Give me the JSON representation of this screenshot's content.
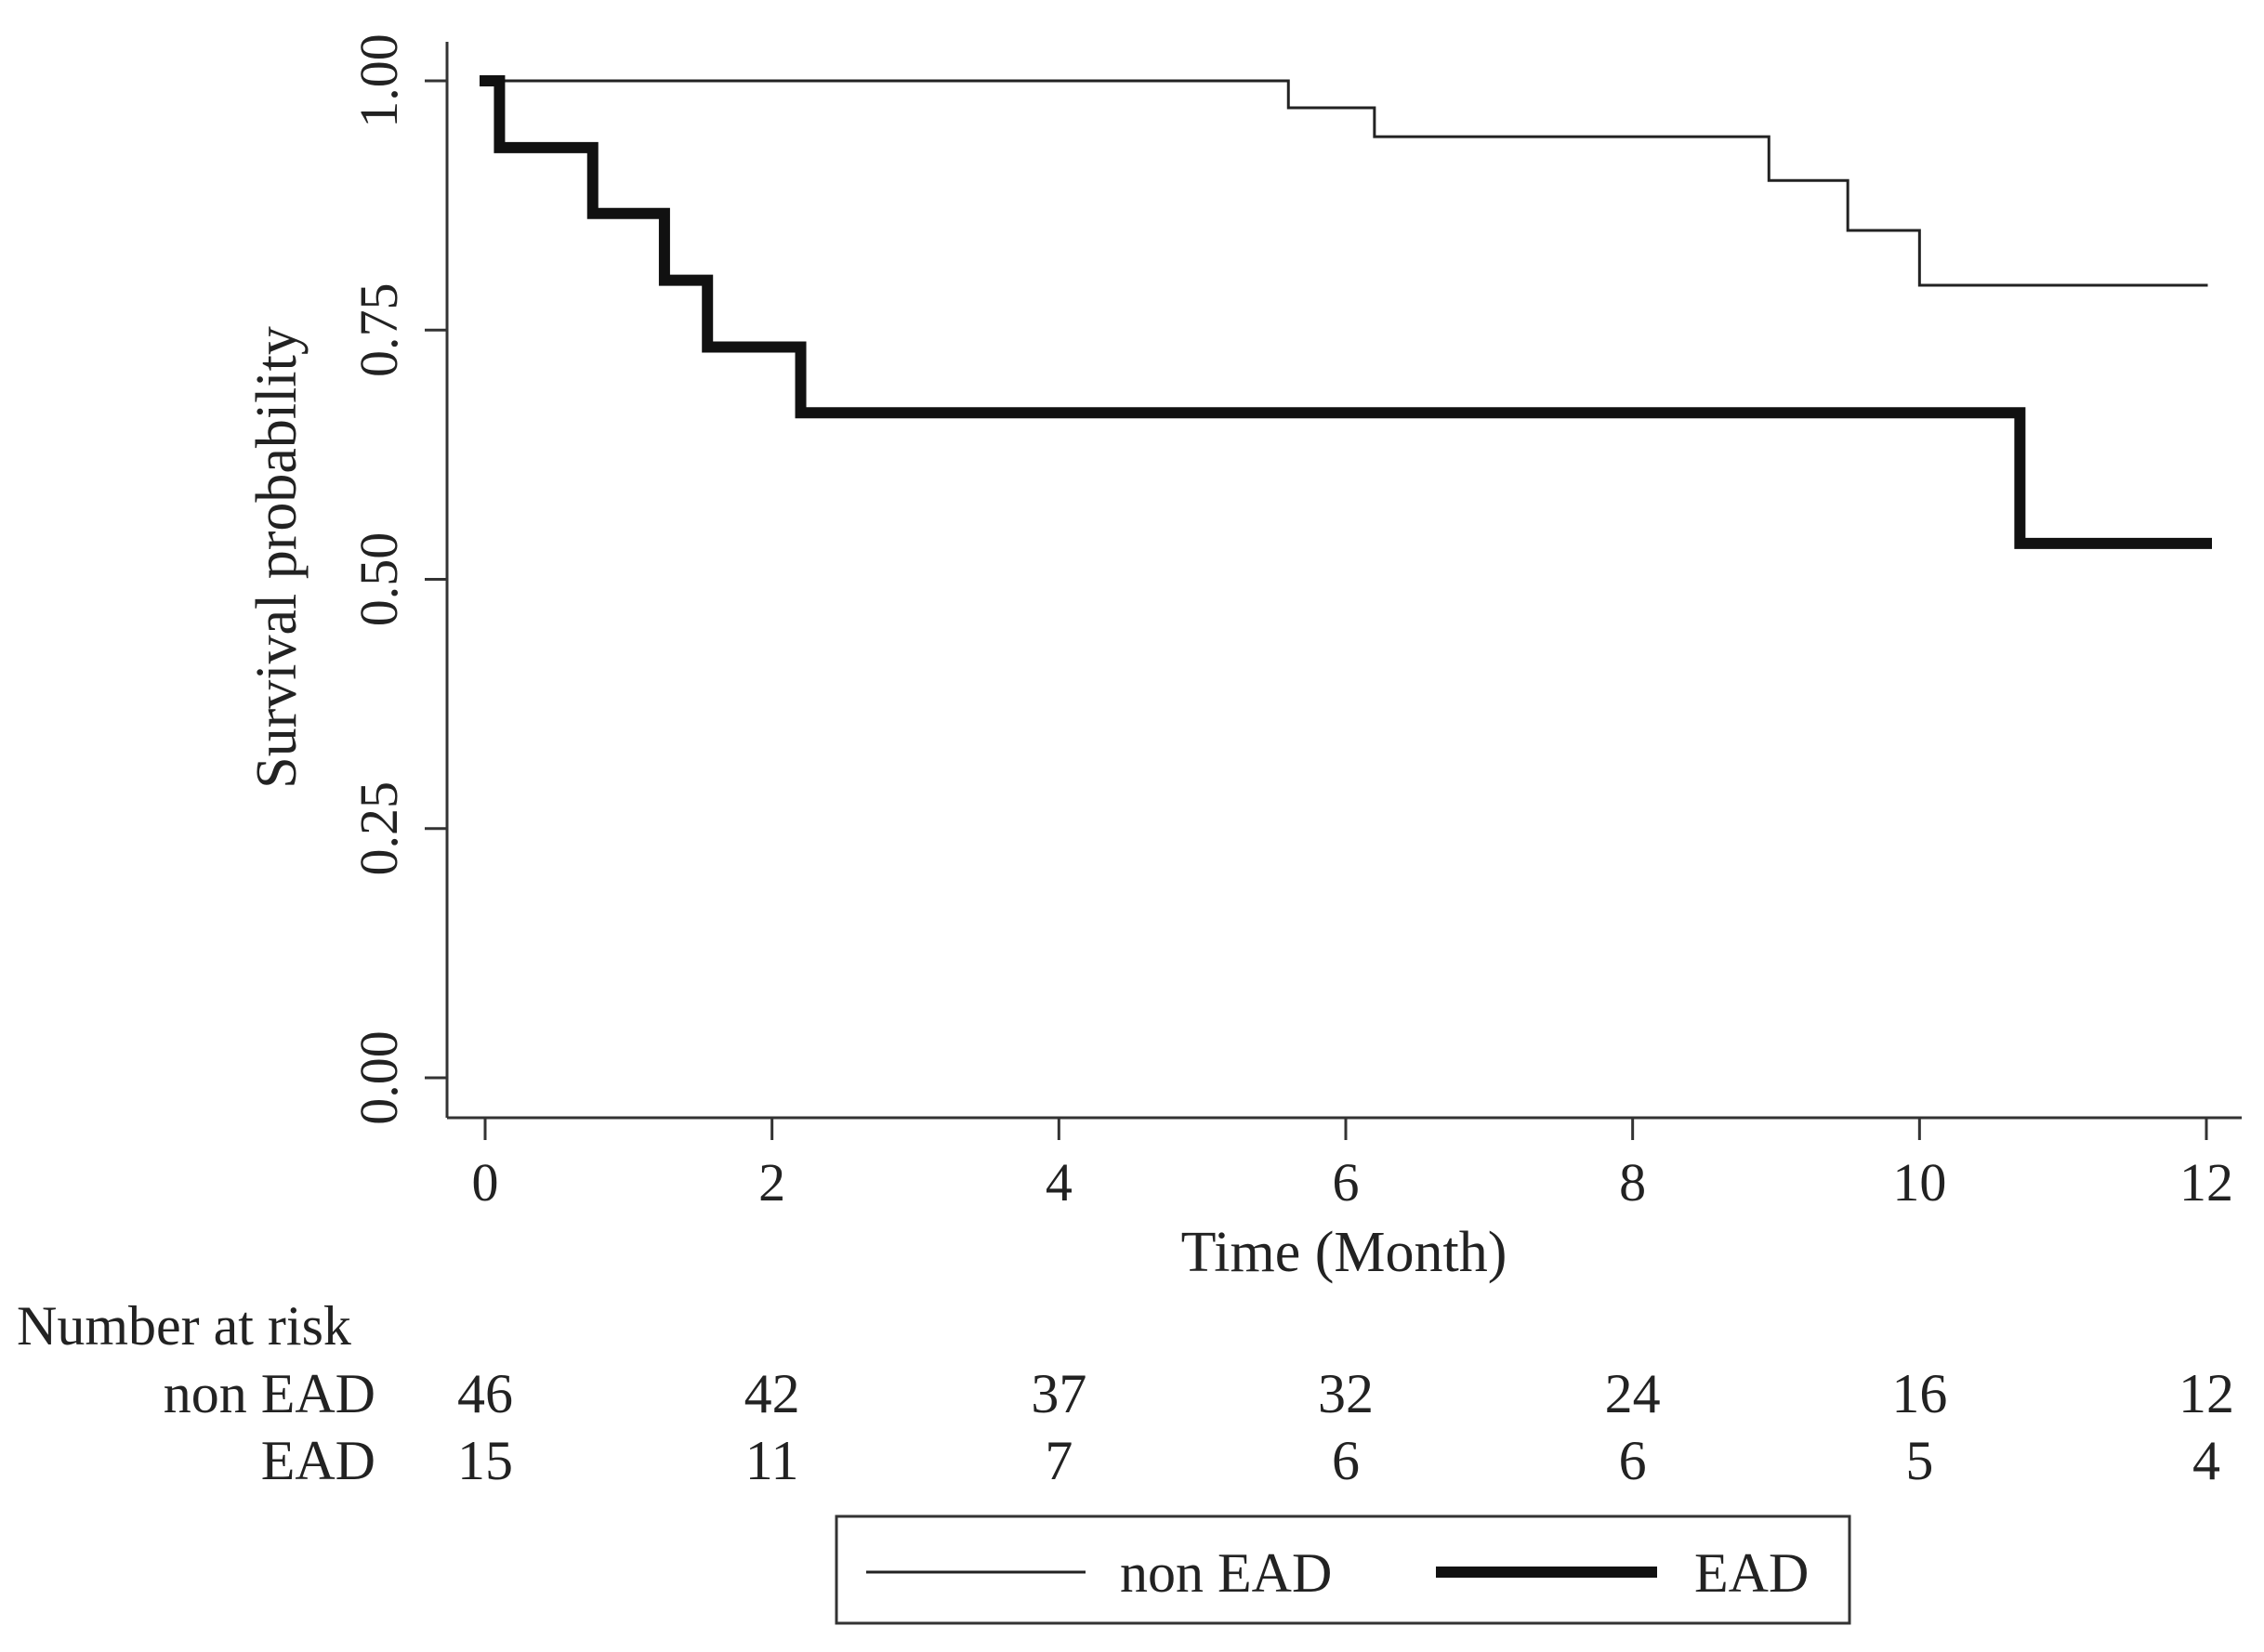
{
  "chart_data": {
    "type": "line",
    "subtype": "kaplan-meier-step",
    "title": "",
    "xlabel": "Time (Month)",
    "ylabel": "Survival probability",
    "xlim": [
      0,
      12
    ],
    "ylim": [
      0,
      1
    ],
    "x_ticks": [
      0,
      2,
      4,
      6,
      8,
      10,
      12
    ],
    "x_tick_labels": [
      "0",
      "2",
      "4",
      "6",
      "8",
      "10",
      "12"
    ],
    "y_ticks": [
      0,
      0.25,
      0.5,
      0.75,
      1
    ],
    "y_tick_labels": [
      "0.00",
      "0.25",
      "0.50",
      "0.75",
      "1.00"
    ],
    "grid": false,
    "series": [
      {
        "name": "non EAD",
        "color": "#222222",
        "style": "thin",
        "x": [
          0,
          5.6,
          6.2,
          8.95,
          9.5,
          10.0,
          12.0
        ],
        "y": [
          1.0,
          0.973,
          0.944,
          0.9,
          0.85,
          0.795,
          0.795
        ]
      },
      {
        "name": "EAD",
        "color": "#111111",
        "style": "thick",
        "x": [
          0,
          0.1,
          0.75,
          1.25,
          1.55,
          2.2,
          10.7,
          12.0
        ],
        "y": [
          1.0,
          0.933,
          0.867,
          0.8,
          0.733,
          0.667,
          0.536,
          0.536
        ]
      }
    ],
    "risk_table": {
      "title": "Number at risk",
      "times": [
        0,
        2,
        4,
        6,
        8,
        10,
        12
      ],
      "rows": [
        {
          "label": "non EAD",
          "values": [
            "46",
            "42",
            "37",
            "32",
            "24",
            "16",
            "12"
          ]
        },
        {
          "label": "EAD",
          "values": [
            "15",
            "11",
            "7",
            "6",
            "6",
            "5",
            "4"
          ]
        }
      ]
    },
    "legend": {
      "placement": "bottom-center",
      "entries": [
        "non EAD",
        "EAD"
      ]
    }
  }
}
